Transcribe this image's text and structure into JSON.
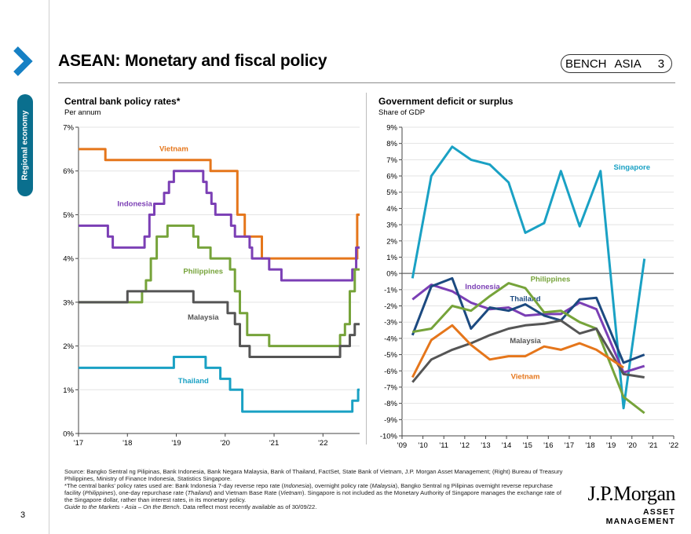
{
  "sidebar": {
    "section_label": "Regional economy",
    "page_number": "3"
  },
  "header": {
    "title": "ASEAN: Monetary and fiscal policy",
    "bench": [
      "BENCH",
      "ASIA",
      "3"
    ]
  },
  "left_chart_text": {
    "title": "Central bank policy rates*",
    "subtitle": "Per annum"
  },
  "right_chart_text": {
    "title": "Government deficit or surplus",
    "subtitle": "Share of GDP"
  },
  "footnotes": {
    "source": "Source: Bangko Sentral ng Pilipinas, Bank Indonesia, Bank Negara Malaysia, Bank of Thailand, FactSet, State Bank of Vietnam, J.P. Morgan Asset Management; (Right) Bureau of Treasury Philippines, Ministry of Finance Indonesia, Statistics Singapore.",
    "note_start": "*The central banks' policy rates used are: Bank Indonesia 7-day reverse repo rate (",
    "note_i1": "Indonesia",
    "note_m1": "), overnight policy rate (",
    "note_i2": "Malaysia",
    "note_m2": "), Bangko Sentral ng Pilipinas overnight reverse repurchase facility (",
    "note_i3": "Philippines",
    "note_m3": "), one-day repurchase rate (",
    "note_i4": "Thailand",
    "note_m4": ") and Vietnam Base Rate (",
    "note_i5": "Vietnam",
    "note_end": "). Singapore is not included as the Monetary Authority of Singapore manages the exchange rate of the Singapore dollar, rather than interest rates, in its monetary policy.",
    "guide_italic": "Guide to the Markets - Asia – On the Bench",
    "guide_rest": ". Data reflect most recently available as of 30/09/22."
  },
  "logo": {
    "name": "J.P.Morgan",
    "sub": "ASSET MANAGEMENT"
  },
  "colors": {
    "Vietnam": "#e5761b",
    "Indonesia": "#7b3fb5",
    "Philippines": "#76a33a",
    "Malaysia": "#555555",
    "Thailand": "#1aa1c4",
    "Singapore": "#1aa1c4",
    "ThailandDeficit": "#1c4a80",
    "accent": "#0a6f8e"
  },
  "chart_data": [
    {
      "type": "line",
      "title": "Central bank policy rates*",
      "ylabel": "Per annum",
      "ylim": [
        0,
        7
      ],
      "yticks": [
        "0%",
        "1%",
        "2%",
        "3%",
        "4%",
        "5%",
        "6%",
        "7%"
      ],
      "xlim": [
        2017.0,
        2022.75
      ],
      "xticks": [
        {
          "v": 2017,
          "label": "'17"
        },
        {
          "v": 2018,
          "label": "'18"
        },
        {
          "v": 2019,
          "label": "'19"
        },
        {
          "v": 2020,
          "label": "'20"
        },
        {
          "v": 2021,
          "label": "'21"
        },
        {
          "v": 2022,
          "label": "'22"
        }
      ],
      "step": true,
      "series": [
        {
          "name": "Vietnam",
          "label_at": [
            2018.95,
            6.45
          ],
          "points": [
            [
              2017.0,
              6.5
            ],
            [
              2017.55,
              6.25
            ],
            [
              2019.7,
              6.0
            ],
            [
              2020.25,
              5.0
            ],
            [
              2020.4,
              4.5
            ],
            [
              2020.75,
              4.0
            ],
            [
              2022.7,
              5.0
            ],
            [
              2022.75,
              5.0
            ]
          ]
        },
        {
          "name": "Indonesia",
          "label_at": [
            2018.15,
            5.2
          ],
          "points": [
            [
              2017.0,
              4.75
            ],
            [
              2017.6,
              4.5
            ],
            [
              2017.7,
              4.25
            ],
            [
              2018.35,
              4.5
            ],
            [
              2018.45,
              5.0
            ],
            [
              2018.55,
              5.25
            ],
            [
              2018.75,
              5.5
            ],
            [
              2018.85,
              5.75
            ],
            [
              2018.95,
              6.0
            ],
            [
              2019.55,
              5.75
            ],
            [
              2019.62,
              5.5
            ],
            [
              2019.72,
              5.25
            ],
            [
              2019.8,
              5.0
            ],
            [
              2020.12,
              4.75
            ],
            [
              2020.2,
              4.5
            ],
            [
              2020.5,
              4.25
            ],
            [
              2020.55,
              4.0
            ],
            [
              2020.9,
              3.75
            ],
            [
              2021.15,
              3.5
            ],
            [
              2022.6,
              3.75
            ],
            [
              2022.68,
              4.25
            ],
            [
              2022.75,
              4.25
            ]
          ]
        },
        {
          "name": "Philippines",
          "label_at": [
            2019.55,
            3.65
          ],
          "points": [
            [
              2017.0,
              3.0
            ],
            [
              2018.3,
              3.25
            ],
            [
              2018.38,
              3.5
            ],
            [
              2018.48,
              4.0
            ],
            [
              2018.6,
              4.5
            ],
            [
              2018.82,
              4.75
            ],
            [
              2019.35,
              4.5
            ],
            [
              2019.45,
              4.25
            ],
            [
              2019.7,
              4.0
            ],
            [
              2020.1,
              3.75
            ],
            [
              2020.2,
              3.25
            ],
            [
              2020.3,
              2.75
            ],
            [
              2020.45,
              2.25
            ],
            [
              2020.9,
              2.0
            ],
            [
              2022.35,
              2.25
            ],
            [
              2022.45,
              2.5
            ],
            [
              2022.55,
              3.25
            ],
            [
              2022.65,
              3.75
            ],
            [
              2022.75,
              3.75
            ]
          ]
        },
        {
          "name": "Malaysia",
          "label_at": [
            2019.55,
            2.6
          ],
          "points": [
            [
              2017.0,
              3.0
            ],
            [
              2018.0,
              3.25
            ],
            [
              2019.35,
              3.0
            ],
            [
              2020.05,
              2.75
            ],
            [
              2020.2,
              2.5
            ],
            [
              2020.3,
              2.0
            ],
            [
              2020.5,
              1.75
            ],
            [
              2022.35,
              2.0
            ],
            [
              2022.55,
              2.25
            ],
            [
              2022.65,
              2.5
            ],
            [
              2022.75,
              2.5
            ]
          ]
        },
        {
          "name": "Thailand",
          "label_at": [
            2019.35,
            1.15
          ],
          "points": [
            [
              2017.0,
              1.5
            ],
            [
              2018.95,
              1.75
            ],
            [
              2019.6,
              1.5
            ],
            [
              2019.9,
              1.25
            ],
            [
              2020.1,
              1.0
            ],
            [
              2020.35,
              0.5
            ],
            [
              2022.6,
              0.75
            ],
            [
              2022.72,
              1.0
            ],
            [
              2022.75,
              1.0
            ]
          ]
        }
      ]
    },
    {
      "type": "line",
      "title": "Government deficit or surplus",
      "ylabel": "Share of GDP",
      "ylim": [
        -10,
        9
      ],
      "yticks": [
        "-10%",
        "-9%",
        "-8%",
        "-7%",
        "-6%",
        "-5%",
        "-4%",
        "-3%",
        "-2%",
        "-1%",
        "0%",
        "1%",
        "2%",
        "3%",
        "4%",
        "5%",
        "6%",
        "7%",
        "8%",
        "9%"
      ],
      "xlim": [
        2009,
        2022
      ],
      "xticks": [
        {
          "v": 2009,
          "label": "'09"
        },
        {
          "v": 2010,
          "label": "'10"
        },
        {
          "v": 2011,
          "label": "'11"
        },
        {
          "v": 2012,
          "label": "'12"
        },
        {
          "v": 2013,
          "label": "'13"
        },
        {
          "v": 2014,
          "label": "'14"
        },
        {
          "v": 2015,
          "label": "'15"
        },
        {
          "v": 2016,
          "label": "'16"
        },
        {
          "v": 2017,
          "label": "'17"
        },
        {
          "v": 2018,
          "label": "'18"
        },
        {
          "v": 2019,
          "label": "'19"
        },
        {
          "v": 2020,
          "label": "'20"
        },
        {
          "v": 2021,
          "label": "'21"
        },
        {
          "v": 2022,
          "label": "'22"
        }
      ],
      "series": [
        {
          "name": "Singapore",
          "label_at": [
            2020.0,
            6.4
          ],
          "points": [
            [
              2009.5,
              -0.3
            ],
            [
              2010.4,
              6.0
            ],
            [
              2011.4,
              7.8
            ],
            [
              2012.3,
              7.0
            ],
            [
              2013.2,
              6.7
            ],
            [
              2014.1,
              5.6
            ],
            [
              2014.9,
              2.5
            ],
            [
              2015.8,
              3.1
            ],
            [
              2016.6,
              6.3
            ],
            [
              2017.5,
              2.9
            ],
            [
              2018.5,
              6.3
            ],
            [
              2019.6,
              -8.3
            ],
            [
              2020.6,
              0.9
            ]
          ]
        },
        {
          "name": "Indonesia",
          "label_at": [
            2012.85,
            -0.95
          ],
          "points": [
            [
              2009.5,
              -1.6
            ],
            [
              2010.4,
              -0.7
            ],
            [
              2011.4,
              -1.1
            ],
            [
              2012.3,
              -1.8
            ],
            [
              2013.2,
              -2.2
            ],
            [
              2014.1,
              -2.1
            ],
            [
              2014.9,
              -2.6
            ],
            [
              2015.8,
              -2.5
            ],
            [
              2016.6,
              -2.5
            ],
            [
              2017.5,
              -1.8
            ],
            [
              2018.3,
              -2.2
            ],
            [
              2019.6,
              -6.1
            ],
            [
              2020.6,
              -5.7
            ]
          ]
        },
        {
          "name": "Thailand",
          "label_at": [
            2014.9,
            -1.7
          ],
          "points": [
            [
              2009.5,
              -3.8
            ],
            [
              2010.4,
              -0.8
            ],
            [
              2011.4,
              -0.3
            ],
            [
              2012.3,
              -3.4
            ],
            [
              2013.2,
              -2.1
            ],
            [
              2014.1,
              -2.3
            ],
            [
              2014.9,
              -1.9
            ],
            [
              2015.8,
              -2.6
            ],
            [
              2016.6,
              -2.9
            ],
            [
              2017.5,
              -1.6
            ],
            [
              2018.3,
              -1.5
            ],
            [
              2019.6,
              -5.5
            ],
            [
              2020.6,
              -5.0
            ]
          ]
        },
        {
          "name": "Philippines",
          "label_at": [
            2016.1,
            -0.5
          ],
          "points": [
            [
              2009.5,
              -3.6
            ],
            [
              2010.4,
              -3.4
            ],
            [
              2011.4,
              -2.0
            ],
            [
              2012.3,
              -2.3
            ],
            [
              2013.2,
              -1.4
            ],
            [
              2014.1,
              -0.6
            ],
            [
              2014.9,
              -0.9
            ],
            [
              2015.8,
              -2.4
            ],
            [
              2016.6,
              -2.3
            ],
            [
              2017.5,
              -3.0
            ],
            [
              2018.3,
              -3.4
            ],
            [
              2019.6,
              -7.6
            ],
            [
              2020.6,
              -8.6
            ]
          ]
        },
        {
          "name": "Malaysia",
          "label_at": [
            2014.9,
            -4.3
          ],
          "points": [
            [
              2009.5,
              -6.7
            ],
            [
              2010.4,
              -5.3
            ],
            [
              2011.4,
              -4.7
            ],
            [
              2012.3,
              -4.3
            ],
            [
              2013.2,
              -3.8
            ],
            [
              2014.1,
              -3.4
            ],
            [
              2014.9,
              -3.2
            ],
            [
              2015.8,
              -3.1
            ],
            [
              2016.6,
              -2.9
            ],
            [
              2017.5,
              -3.7
            ],
            [
              2018.3,
              -3.4
            ],
            [
              2019.6,
              -6.2
            ],
            [
              2020.6,
              -6.4
            ]
          ]
        },
        {
          "name": "Vietnam",
          "label_at": [
            2014.9,
            -6.5
          ],
          "points": [
            [
              2009.5,
              -6.4
            ],
            [
              2010.4,
              -4.1
            ],
            [
              2011.4,
              -3.2
            ],
            [
              2012.3,
              -4.4
            ],
            [
              2013.2,
              -5.3
            ],
            [
              2014.1,
              -5.1
            ],
            [
              2014.9,
              -5.1
            ],
            [
              2015.8,
              -4.5
            ],
            [
              2016.6,
              -4.7
            ],
            [
              2017.5,
              -4.3
            ],
            [
              2018.3,
              -4.7
            ],
            [
              2019.6,
              -5.8
            ]
          ]
        }
      ]
    }
  ]
}
